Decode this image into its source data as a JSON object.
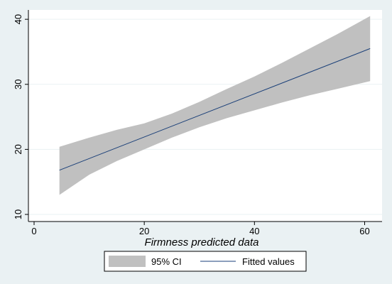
{
  "chart_data": {
    "type": "line",
    "title": "",
    "xlabel": "Firmness predicted data",
    "ylabel": "",
    "xlim": [
      0,
      62
    ],
    "ylim": [
      10,
      41
    ],
    "xticks": [
      0,
      20,
      40,
      60
    ],
    "yticks": [
      10,
      20,
      30,
      40
    ],
    "x_tick_labels": [
      "0",
      "20",
      "40",
      "60"
    ],
    "y_tick_labels": [
      "10",
      "20",
      "30",
      "40"
    ],
    "grid": "horizontal",
    "legend_position": "bottom",
    "series": [
      {
        "name": "95% CI",
        "kind": "band",
        "color": "#c0c0c0",
        "x": [
          4.6,
          10,
          15,
          20,
          25,
          30,
          35,
          40,
          45,
          50,
          55,
          61
        ],
        "lower": [
          13.0,
          16.1,
          18.2,
          20.0,
          21.8,
          23.4,
          24.8,
          26.0,
          27.2,
          28.3,
          29.3,
          30.5
        ],
        "upper": [
          20.4,
          21.8,
          23.0,
          24.0,
          25.5,
          27.3,
          29.3,
          31.2,
          33.3,
          35.5,
          37.7,
          40.5
        ]
      },
      {
        "name": "Fitted values",
        "kind": "line",
        "color": "#1a3f78",
        "x": [
          4.6,
          61
        ],
        "y": [
          16.8,
          35.5
        ]
      }
    ]
  }
}
